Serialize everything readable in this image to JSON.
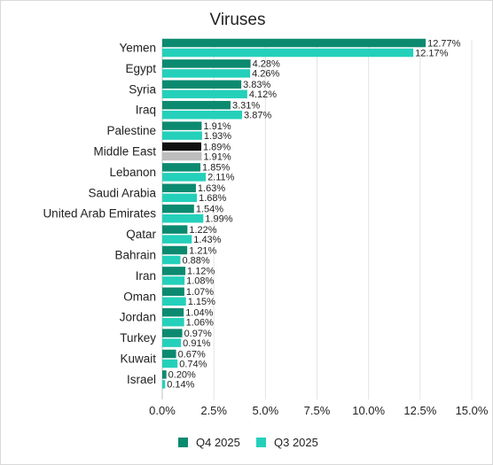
{
  "chart_data": {
    "type": "bar",
    "orientation": "horizontal",
    "title": "Viruses",
    "xlabel": "",
    "ylabel": "",
    "xlim": [
      0,
      15
    ],
    "tick_labels": [
      "0.0%",
      "2.5%",
      "5.0%",
      "7.5%",
      "10.0%",
      "12.5%",
      "15.0%"
    ],
    "tick_values": [
      0,
      2.5,
      5,
      7.5,
      10,
      12.5,
      15
    ],
    "grid": true,
    "legend_position": "bottom",
    "categories": [
      "Yemen",
      "Egypt",
      "Syria",
      "Iraq",
      "Palestine",
      "Middle East",
      "Lebanon",
      "Saudi Arabia",
      "United Arab Emirates",
      "Qatar",
      "Bahrain",
      "Iran",
      "Oman",
      "Jordan",
      "Turkey",
      "Kuwait",
      "Israel"
    ],
    "series": [
      {
        "name": "Q4 2025",
        "color": "#0c8a70",
        "values": [
          12.77,
          4.28,
          3.83,
          3.31,
          1.91,
          1.89,
          1.85,
          1.63,
          1.54,
          1.22,
          1.21,
          1.12,
          1.07,
          1.04,
          0.97,
          0.67,
          0.2
        ],
        "labels": [
          "12.77%",
          "4.28%",
          "3.83%",
          "3.31%",
          "1.91%",
          "1.89%",
          "1.85%",
          "1.63%",
          "1.54%",
          "1.22%",
          "1.21%",
          "1.12%",
          "1.07%",
          "1.04%",
          "0.97%",
          "0.67%",
          "0.20%"
        ]
      },
      {
        "name": "Q3 2025",
        "color": "#24d0ba",
        "values": [
          12.17,
          4.26,
          4.12,
          3.87,
          1.93,
          1.91,
          2.11,
          1.68,
          1.99,
          1.43,
          0.88,
          1.08,
          1.15,
          1.06,
          0.91,
          0.74,
          0.14
        ],
        "labels": [
          "12.17%",
          "4.26%",
          "4.12%",
          "3.87%",
          "1.93%",
          "1.91%",
          "2.11%",
          "1.68%",
          "1.99%",
          "1.43%",
          "0.88%",
          "1.08%",
          "1.15%",
          "1.06%",
          "0.91%",
          "0.74%",
          "0.14%"
        ]
      }
    ],
    "highlight": {
      "category": "Middle East",
      "colors": [
        "#111111",
        "#bdbdbd"
      ]
    }
  }
}
